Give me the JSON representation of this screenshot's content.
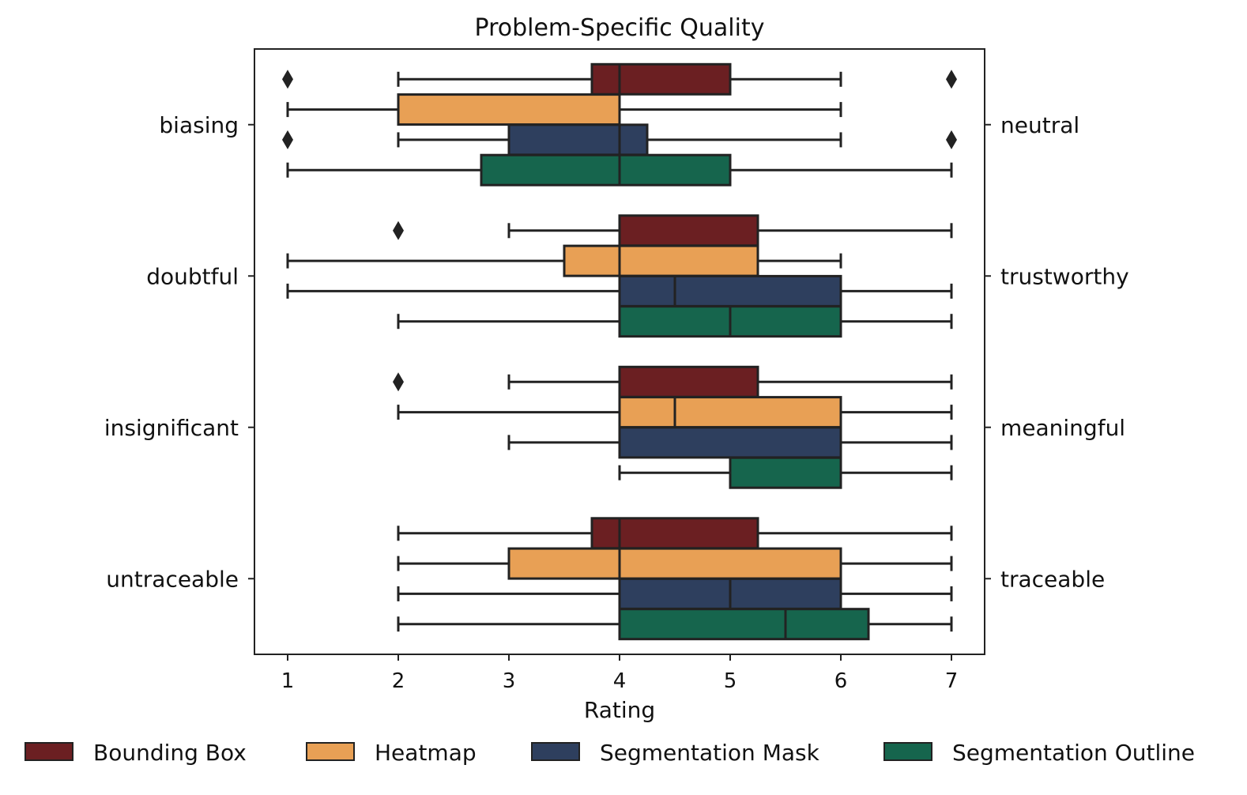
{
  "chart_data": {
    "type": "boxplot",
    "orientation": "horizontal",
    "title": "Problem-Specific Quality",
    "xlabel": "Rating",
    "xlim": [
      0.7,
      7.3
    ],
    "xticks": [
      1,
      2,
      3,
      4,
      5,
      6,
      7
    ],
    "categories_left": [
      "biasing",
      "doubtful",
      "insignificant",
      "untraceable"
    ],
    "categories_right": [
      "neutral",
      "trustworthy",
      "meaningful",
      "traceable"
    ],
    "series": [
      {
        "name": "Bounding Box",
        "color": "#6b1f22"
      },
      {
        "name": "Heatmap",
        "color": "#e8a055"
      },
      {
        "name": "Segmentation Mask",
        "color": "#2e3f5e"
      },
      {
        "name": "Segmentation Outline",
        "color": "#16654d"
      }
    ],
    "boxes": [
      [
        {
          "whislo": 2,
          "q1": 3.75,
          "med": 4,
          "q3": 5,
          "whishi": 6,
          "fliers": [
            1,
            7
          ]
        },
        {
          "whislo": 1,
          "q1": 2,
          "med": 4,
          "q3": 4,
          "whishi": 6,
          "fliers": []
        },
        {
          "whislo": 2,
          "q1": 3,
          "med": 4,
          "q3": 4.25,
          "whishi": 6,
          "fliers": [
            1,
            7
          ]
        },
        {
          "whislo": 1,
          "q1": 2.75,
          "med": 4,
          "q3": 5,
          "whishi": 7,
          "fliers": []
        }
      ],
      [
        {
          "whislo": 3,
          "q1": 4,
          "med": 4,
          "q3": 5.25,
          "whishi": 7,
          "fliers": [
            2
          ]
        },
        {
          "whislo": 1,
          "q1": 3.5,
          "med": 4,
          "q3": 5.25,
          "whishi": 6,
          "fliers": []
        },
        {
          "whislo": 1,
          "q1": 4,
          "med": 4.5,
          "q3": 6,
          "whishi": 7,
          "fliers": []
        },
        {
          "whislo": 2,
          "q1": 4,
          "med": 5,
          "q3": 6,
          "whishi": 7,
          "fliers": []
        }
      ],
      [
        {
          "whislo": 3,
          "q1": 4,
          "med": 4,
          "q3": 5.25,
          "whishi": 7,
          "fliers": [
            2
          ]
        },
        {
          "whislo": 2,
          "q1": 4,
          "med": 4.5,
          "q3": 6,
          "whishi": 7,
          "fliers": []
        },
        {
          "whislo": 3,
          "q1": 4,
          "med": 6,
          "q3": 6,
          "whishi": 7,
          "fliers": []
        },
        {
          "whislo": 4,
          "q1": 5,
          "med": 6,
          "q3": 6,
          "whishi": 7,
          "fliers": []
        }
      ],
      [
        {
          "whislo": 2,
          "q1": 3.75,
          "med": 4,
          "q3": 5.25,
          "whishi": 7,
          "fliers": []
        },
        {
          "whislo": 2,
          "q1": 3,
          "med": 4,
          "q3": 6,
          "whishi": 7,
          "fliers": []
        },
        {
          "whislo": 2,
          "q1": 4,
          "med": 5,
          "q3": 6,
          "whishi": 7,
          "fliers": []
        },
        {
          "whislo": 2,
          "q1": 4,
          "med": 5.5,
          "q3": 6.25,
          "whishi": 7,
          "fliers": []
        }
      ]
    ],
    "grid": false,
    "legend_position": "bottom"
  }
}
